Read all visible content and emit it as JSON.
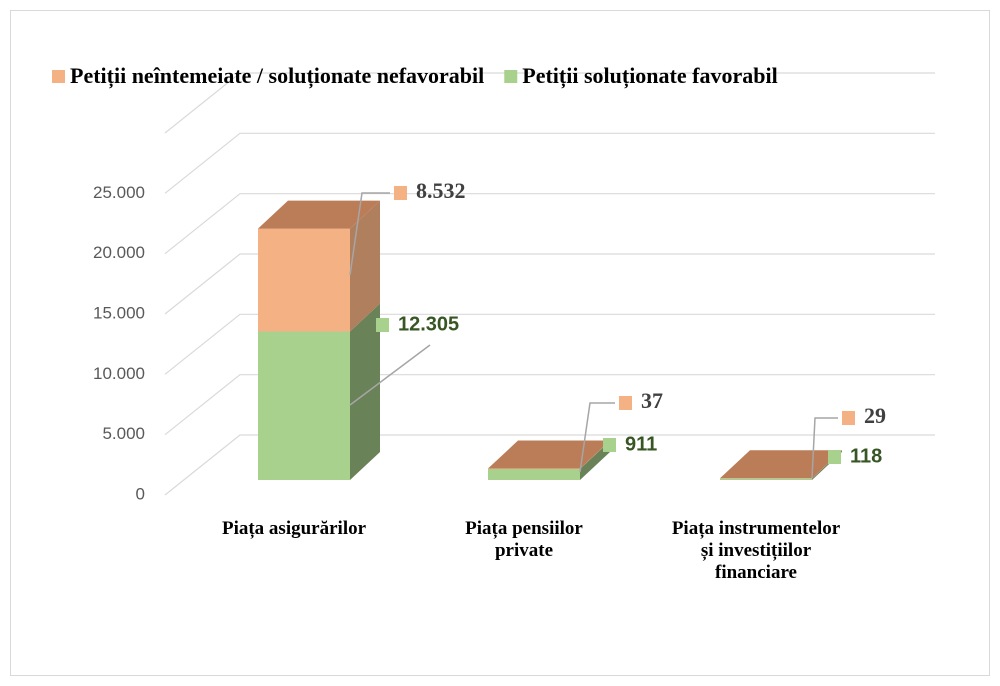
{
  "chart_data": {
    "type": "bar3d_stacked",
    "categories": [
      "Piața asigurărilor",
      "Piața pensiilor private",
      "Piața instrumentelor  și investițiilor financiare"
    ],
    "series": [
      {
        "name": "Petiții neîntemeiate / soluționate nefavorabil",
        "color": "#f4b183",
        "values": [
          8532,
          37,
          29
        ],
        "value_labels": [
          "8.532",
          "37",
          "29"
        ]
      },
      {
        "name": "Petiții soluționate favorabil",
        "color": "#a9d18e",
        "values": [
          12305,
          911,
          118
        ],
        "value_labels": [
          "12.305",
          "911",
          "118"
        ]
      }
    ],
    "ylim": [
      0,
      30000
    ],
    "yticks": [
      0,
      {
        "value": 5000,
        "label": "5.000"
      },
      {
        "value": 10000,
        "label": "10.000"
      },
      {
        "value": 15000,
        "label": "15.000"
      },
      {
        "value": 20000,
        "label": "20.000"
      },
      {
        "value": 25000,
        "label": "25.000"
      }
    ],
    "grid": true,
    "legend": "top"
  }
}
